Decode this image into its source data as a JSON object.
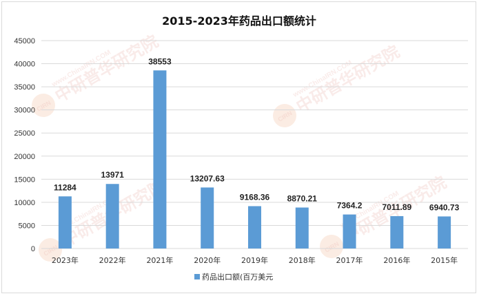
{
  "chart_data": {
    "type": "bar",
    "title": "2015-2023年药品出口额统计",
    "categories": [
      "2023年",
      "2022年",
      "2021年",
      "2020年",
      "2019年",
      "2018年",
      "2017年",
      "2016年",
      "2015年"
    ],
    "series": [
      {
        "name": "药品出口额(百万美元",
        "values": [
          11284,
          13971,
          38553,
          13207.63,
          9168.36,
          8870.21,
          7364.2,
          7011.89,
          6940.73
        ],
        "data_labels": [
          "11284",
          "13971",
          "38553",
          "13207.63",
          "9168.36",
          "8870.21",
          "7364.2",
          "7011.89",
          "6940.73"
        ],
        "color": "#5b9bd5"
      }
    ],
    "ylim": [
      0,
      45000
    ],
    "yticks": [
      "0",
      "5000",
      "10000",
      "15000",
      "20000",
      "25000",
      "30000",
      "35000",
      "40000",
      "45000"
    ],
    "xlabel": "",
    "ylabel": "",
    "grid": true,
    "legend_position": "bottom"
  },
  "watermark": {
    "brand": "中研普华研究院",
    "url": "www.ChinaIRN.COM",
    "logo": "CIRN"
  }
}
